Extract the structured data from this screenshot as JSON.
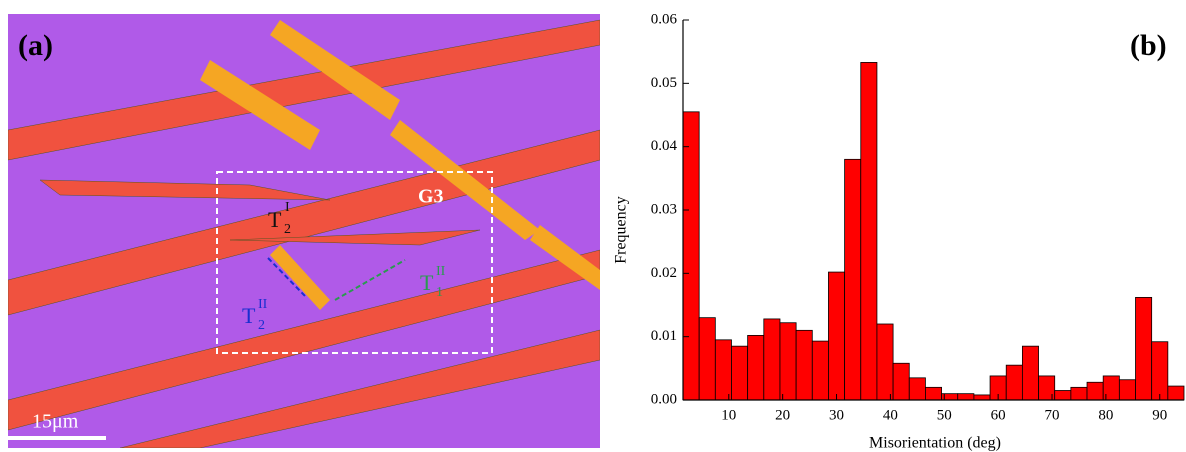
{
  "panel_a": {
    "label": "(a)",
    "grain": "G3",
    "scale_bar": "15μm",
    "twin_1": {
      "base": "T",
      "sub": "2",
      "sup": "I"
    },
    "twin_2": {
      "base": "T",
      "sub": "2",
      "sup": "II"
    },
    "twin_3": {
      "base": "T",
      "sub": "1",
      "sup": "II"
    }
  },
  "chart_data": {
    "type": "histogram",
    "panel_label": "(b)",
    "x_label": "Misorientation (deg)",
    "y_label": "Frequency",
    "color": "#ff0000",
    "bins": [
      1.5,
      4.5,
      7.5,
      10.5,
      13.5,
      16.5,
      19.5,
      22.5,
      25.5,
      28.5,
      31.5,
      34.5,
      37.5,
      40.5,
      43.5,
      46.5,
      49.5,
      52.5,
      55.5,
      58.5,
      61.5,
      64.5,
      67.5,
      70.5,
      73.5,
      76.5,
      79.5,
      82.5,
      85.5,
      88.5,
      91.5,
      94.5
    ],
    "values": [
      0.0455,
      0.013,
      0.0095,
      0.0085,
      0.0102,
      0.0128,
      0.0122,
      0.011,
      0.0093,
      0.0202,
      0.038,
      0.0533,
      0.012,
      0.0058,
      0.0035,
      0.002,
      0.001,
      0.001,
      0.0008,
      0.0038,
      0.0055,
      0.0085,
      0.0038,
      0.0015,
      0.002,
      0.0028,
      0.0038,
      0.0032,
      0.0162,
      0.0092,
      0.0022
    ],
    "xlim": [
      1.5,
      94.5
    ],
    "xticks": [
      10,
      20,
      30,
      40,
      50,
      60,
      70,
      80,
      90
    ],
    "ylim": [
      0,
      0.06
    ],
    "yticks": [
      {
        "value": 0,
        "label": "0.00"
      },
      {
        "value": 0.01,
        "label": "0.01"
      },
      {
        "value": 0.02,
        "label": "0.02"
      },
      {
        "value": 0.03,
        "label": "0.03"
      },
      {
        "value": 0.04,
        "label": "0.04"
      },
      {
        "value": 0.05,
        "label": "0.05"
      },
      {
        "value": 0.06,
        "label": "0.06"
      }
    ]
  }
}
